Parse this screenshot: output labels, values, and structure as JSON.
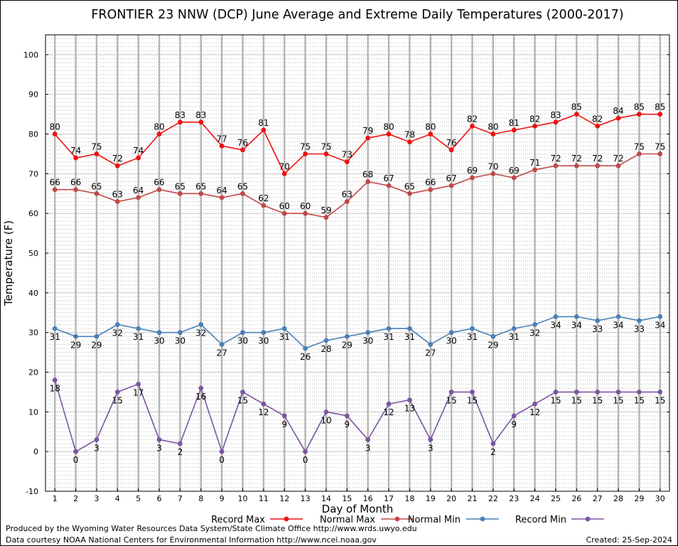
{
  "chart_data": {
    "type": "line",
    "title": "FRONTIER 23 NNW (DCP) June Average and Extreme Daily Temperatures (2000-2017)",
    "xlabel": "Day of Month",
    "ylabel": "Temperature (F)",
    "ylim": [
      -10,
      105
    ],
    "yticks": [
      -10,
      0,
      10,
      20,
      30,
      40,
      50,
      60,
      70,
      80,
      90,
      100
    ],
    "x": [
      1,
      2,
      3,
      4,
      5,
      6,
      7,
      8,
      9,
      10,
      11,
      12,
      13,
      14,
      15,
      16,
      17,
      18,
      19,
      20,
      21,
      22,
      23,
      24,
      25,
      26,
      27,
      28,
      29,
      30
    ],
    "grid": true,
    "legend_position": "bottom",
    "series": [
      {
        "name": "Record Max",
        "color": "#ee1111",
        "label_pos": "above",
        "values": [
          80,
          74,
          75,
          72,
          74,
          80,
          83,
          83,
          77,
          76,
          81,
          70,
          75,
          75,
          73,
          79,
          80,
          78,
          80,
          76,
          82,
          80,
          81,
          82,
          83,
          85,
          82,
          84,
          85,
          85
        ]
      },
      {
        "name": "Normal Max",
        "color": "#c04848",
        "label_pos": "above",
        "values": [
          66,
          66,
          65,
          63,
          64,
          66,
          65,
          65,
          64,
          65,
          62,
          60,
          60,
          59,
          63,
          68,
          67,
          65,
          66,
          67,
          69,
          70,
          69,
          71,
          72,
          72,
          72,
          72,
          75,
          75
        ]
      },
      {
        "name": "Normal Min",
        "color": "#4a7fb5",
        "label_pos": "mixed",
        "values": [
          31,
          29,
          29,
          32,
          31,
          30,
          30,
          32,
          27,
          30,
          30,
          31,
          26,
          28,
          29,
          30,
          31,
          31,
          27,
          30,
          31,
          29,
          31,
          32,
          34,
          34,
          33,
          34,
          33,
          34
        ]
      },
      {
        "name": "Record Min",
        "color": "#7b55a0",
        "label_pos": "mixed",
        "values": [
          18,
          0,
          3,
          15,
          17,
          3,
          2,
          16,
          0,
          15,
          12,
          9,
          0,
          10,
          9,
          3,
          12,
          13,
          3,
          15,
          15,
          2,
          9,
          12,
          15,
          15,
          15,
          15,
          15,
          15
        ]
      }
    ]
  },
  "footer": {
    "produced_by": "Produced by the Wyoming Water Resources Data System/State Climate Office http://www.wrds.uwyo.edu",
    "data_courtesy": "Data courtesy NOAA National Centers for Environmental Information http://www.ncei.noaa.gov",
    "created": "Created:  25-Sep-2024"
  }
}
